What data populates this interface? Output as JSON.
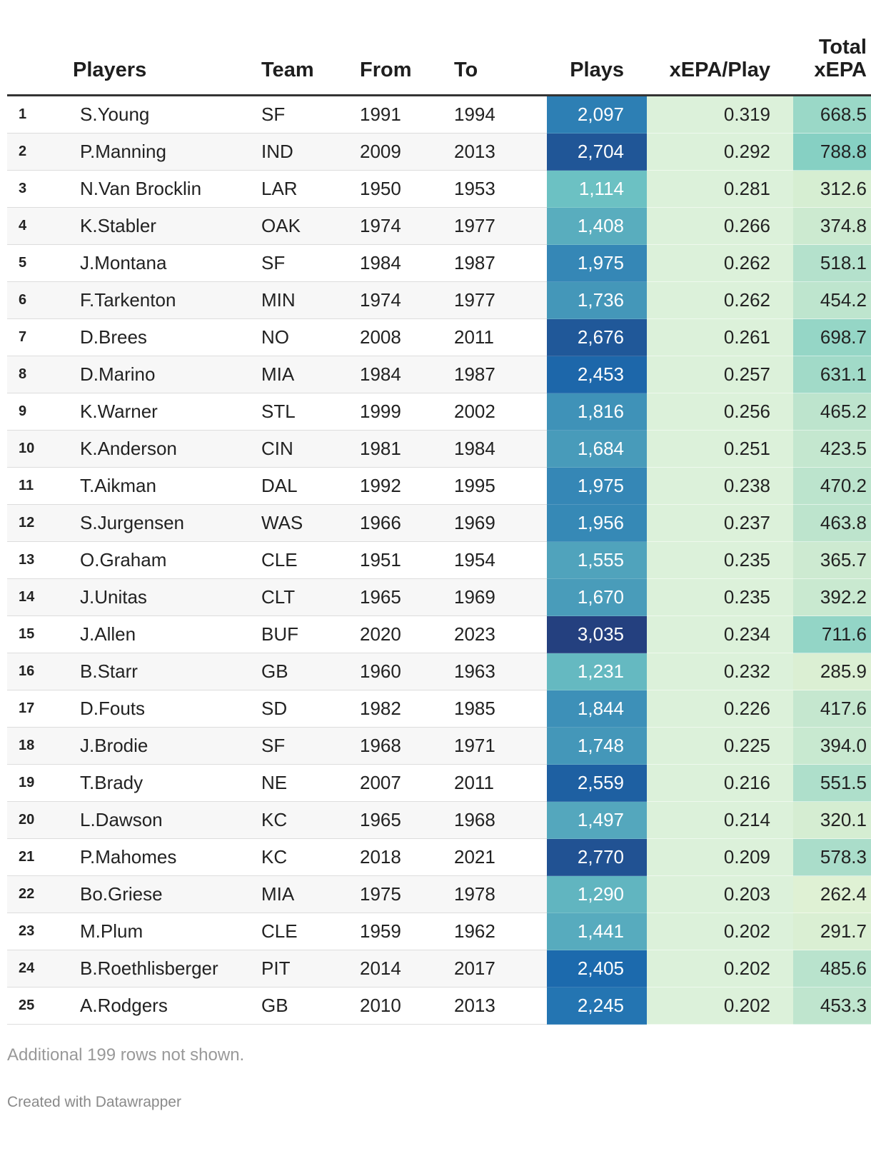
{
  "chart_data": {
    "type": "table",
    "columns": [
      "",
      "Players",
      "Team",
      "From",
      "To",
      "Plays",
      "xEPA/Play",
      "Total xEPA"
    ],
    "rows": [
      {
        "rank": 1,
        "player": "S.Young",
        "team": "SF",
        "from": "1991",
        "to": "1994",
        "plays": 2097,
        "plays_label": "2,097",
        "xepa_play": "0.319",
        "total_xepa": 668.5,
        "total_label": "668.5"
      },
      {
        "rank": 2,
        "player": "P.Manning",
        "team": "IND",
        "from": "2009",
        "to": "2013",
        "plays": 2704,
        "plays_label": "2,704",
        "xepa_play": "0.292",
        "total_xepa": 788.8,
        "total_label": "788.8"
      },
      {
        "rank": 3,
        "player": "N.Van Brocklin",
        "team": "LAR",
        "from": "1950",
        "to": "1953",
        "plays": 1114,
        "plays_label": "1,114",
        "xepa_play": "0.281",
        "total_xepa": 312.6,
        "total_label": "312.6"
      },
      {
        "rank": 4,
        "player": "K.Stabler",
        "team": "OAK",
        "from": "1974",
        "to": "1977",
        "plays": 1408,
        "plays_label": "1,408",
        "xepa_play": "0.266",
        "total_xepa": 374.8,
        "total_label": "374.8"
      },
      {
        "rank": 5,
        "player": "J.Montana",
        "team": "SF",
        "from": "1984",
        "to": "1987",
        "plays": 1975,
        "plays_label": "1,975",
        "xepa_play": "0.262",
        "total_xepa": 518.1,
        "total_label": "518.1"
      },
      {
        "rank": 6,
        "player": "F.Tarkenton",
        "team": "MIN",
        "from": "1974",
        "to": "1977",
        "plays": 1736,
        "plays_label": "1,736",
        "xepa_play": "0.262",
        "total_xepa": 454.2,
        "total_label": "454.2"
      },
      {
        "rank": 7,
        "player": "D.Brees",
        "team": "NO",
        "from": "2008",
        "to": "2011",
        "plays": 2676,
        "plays_label": "2,676",
        "xepa_play": "0.261",
        "total_xepa": 698.7,
        "total_label": "698.7"
      },
      {
        "rank": 8,
        "player": "D.Marino",
        "team": "MIA",
        "from": "1984",
        "to": "1987",
        "plays": 2453,
        "plays_label": "2,453",
        "xepa_play": "0.257",
        "total_xepa": 631.1,
        "total_label": "631.1"
      },
      {
        "rank": 9,
        "player": "K.Warner",
        "team": "STL",
        "from": "1999",
        "to": "2002",
        "plays": 1816,
        "plays_label": "1,816",
        "xepa_play": "0.256",
        "total_xepa": 465.2,
        "total_label": "465.2"
      },
      {
        "rank": 10,
        "player": "K.Anderson",
        "team": "CIN",
        "from": "1981",
        "to": "1984",
        "plays": 1684,
        "plays_label": "1,684",
        "xepa_play": "0.251",
        "total_xepa": 423.5,
        "total_label": "423.5"
      },
      {
        "rank": 11,
        "player": "T.Aikman",
        "team": "DAL",
        "from": "1992",
        "to": "1995",
        "plays": 1975,
        "plays_label": "1,975",
        "xepa_play": "0.238",
        "total_xepa": 470.2,
        "total_label": "470.2"
      },
      {
        "rank": 12,
        "player": "S.Jurgensen",
        "team": "WAS",
        "from": "1966",
        "to": "1969",
        "plays": 1956,
        "plays_label": "1,956",
        "xepa_play": "0.237",
        "total_xepa": 463.8,
        "total_label": "463.8"
      },
      {
        "rank": 13,
        "player": "O.Graham",
        "team": "CLE",
        "from": "1951",
        "to": "1954",
        "plays": 1555,
        "plays_label": "1,555",
        "xepa_play": "0.235",
        "total_xepa": 365.7,
        "total_label": "365.7"
      },
      {
        "rank": 14,
        "player": "J.Unitas",
        "team": "CLT",
        "from": "1965",
        "to": "1969",
        "plays": 1670,
        "plays_label": "1,670",
        "xepa_play": "0.235",
        "total_xepa": 392.2,
        "total_label": "392.2"
      },
      {
        "rank": 15,
        "player": "J.Allen",
        "team": "BUF",
        "from": "2020",
        "to": "2023",
        "plays": 3035,
        "plays_label": "3,035",
        "xepa_play": "0.234",
        "total_xepa": 711.6,
        "total_label": "711.6"
      },
      {
        "rank": 16,
        "player": "B.Starr",
        "team": "GB",
        "from": "1960",
        "to": "1963",
        "plays": 1231,
        "plays_label": "1,231",
        "xepa_play": "0.232",
        "total_xepa": 285.9,
        "total_label": "285.9"
      },
      {
        "rank": 17,
        "player": "D.Fouts",
        "team": "SD",
        "from": "1982",
        "to": "1985",
        "plays": 1844,
        "plays_label": "1,844",
        "xepa_play": "0.226",
        "total_xepa": 417.6,
        "total_label": "417.6"
      },
      {
        "rank": 18,
        "player": "J.Brodie",
        "team": "SF",
        "from": "1968",
        "to": "1971",
        "plays": 1748,
        "plays_label": "1,748",
        "xepa_play": "0.225",
        "total_xepa": 394.0,
        "total_label": "394.0"
      },
      {
        "rank": 19,
        "player": "T.Brady",
        "team": "NE",
        "from": "2007",
        "to": "2011",
        "plays": 2559,
        "plays_label": "2,559",
        "xepa_play": "0.216",
        "total_xepa": 551.5,
        "total_label": "551.5"
      },
      {
        "rank": 20,
        "player": "L.Dawson",
        "team": "KC",
        "from": "1965",
        "to": "1968",
        "plays": 1497,
        "plays_label": "1,497",
        "xepa_play": "0.214",
        "total_xepa": 320.1,
        "total_label": "320.1"
      },
      {
        "rank": 21,
        "player": "P.Mahomes",
        "team": "KC",
        "from": "2018",
        "to": "2021",
        "plays": 2770,
        "plays_label": "2,770",
        "xepa_play": "0.209",
        "total_xepa": 578.3,
        "total_label": "578.3"
      },
      {
        "rank": 22,
        "player": "Bo.Griese",
        "team": "MIA",
        "from": "1975",
        "to": "1978",
        "plays": 1290,
        "plays_label": "1,290",
        "xepa_play": "0.203",
        "total_xepa": 262.4,
        "total_label": "262.4"
      },
      {
        "rank": 23,
        "player": "M.Plum",
        "team": "CLE",
        "from": "1959",
        "to": "1962",
        "plays": 1441,
        "plays_label": "1,441",
        "xepa_play": "0.202",
        "total_xepa": 291.7,
        "total_label": "291.7"
      },
      {
        "rank": 24,
        "player": "B.Roethlisberger",
        "team": "PIT",
        "from": "2014",
        "to": "2017",
        "plays": 2405,
        "plays_label": "2,405",
        "xepa_play": "0.202",
        "total_xepa": 485.6,
        "total_label": "485.6"
      },
      {
        "rank": 25,
        "player": "A.Rodgers",
        "team": "GB",
        "from": "2010",
        "to": "2013",
        "plays": 2245,
        "plays_label": "2,245",
        "xepa_play": "0.202",
        "total_xepa": 453.3,
        "total_label": "453.3"
      }
    ],
    "plays_color_scale": {
      "min": 1100,
      "max": 3050,
      "low": "#6dc2c3",
      "mid": "#1c6db0",
      "high": "#243f7e"
    },
    "total_color_scale": {
      "min": 260,
      "max": 790,
      "low": "#dff1d4",
      "high": "#86d0c3"
    }
  },
  "header": {
    "rank": "",
    "players": "Players",
    "team": "Team",
    "from": "From",
    "to": "To",
    "plays": "Plays",
    "xepa_play": "xEPA/Play",
    "total_line1": "Total",
    "total_line2": "xEPA"
  },
  "footer": {
    "note": "Additional 199 rows not shown.",
    "credit": "Created with Datawrapper"
  }
}
